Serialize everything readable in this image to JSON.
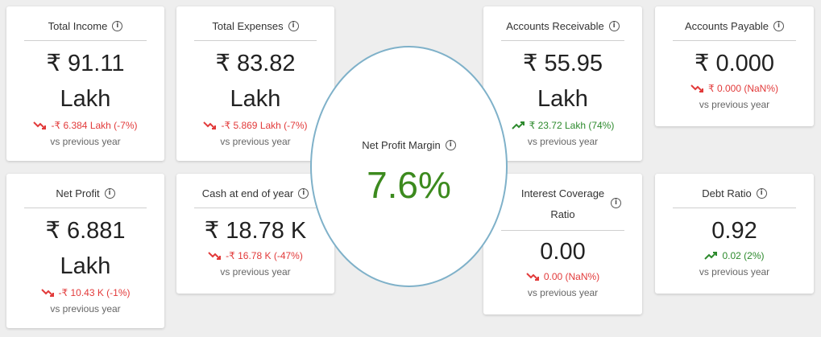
{
  "cards": {
    "total_income": {
      "title": "Total Income",
      "value_line1": "₹ 91.11",
      "value_line2": "Lakh",
      "change": "-₹ 6.384 Lakh (-7%)",
      "vs": "vs previous year"
    },
    "total_expenses": {
      "title": "Total Expenses",
      "value_line1": "₹ 83.82",
      "value_line2": "Lakh",
      "change": "-₹ 5.869 Lakh (-7%)",
      "vs": "vs previous year"
    },
    "accounts_receivable": {
      "title": "Accounts Receivable",
      "value_line1": "₹ 55.95",
      "value_line2": "Lakh",
      "change": "₹ 23.72 Lakh (74%)",
      "vs": "vs previous year"
    },
    "accounts_payable": {
      "title": "Accounts Payable",
      "value_line1": "₹ 0.000",
      "change": "₹ 0.000 (NaN%)",
      "vs": "vs previous year"
    },
    "net_profit": {
      "title": "Net Profit",
      "value_line1": "₹ 6.881",
      "value_line2": "Lakh",
      "change": "-₹ 10.43 K (-1%)",
      "vs": "vs previous year"
    },
    "cash_end_year": {
      "title": "Cash at end of year",
      "value_line1": "₹ 18.78 K",
      "change": "-₹ 16.78 K (-47%)",
      "vs": "vs previous year"
    },
    "interest_coverage": {
      "title_line1": "Interest Coverage",
      "title_line2": "Ratio",
      "value_line1": "0.00",
      "change": "0.00 (NaN%)",
      "vs": "vs previous year"
    },
    "debt_ratio": {
      "title": "Debt Ratio",
      "value_line1": "0.92",
      "change": "0.02 (2%)",
      "vs": "vs previous year"
    }
  },
  "net_profit_margin": {
    "title": "Net Profit Margin",
    "value": "7.6%"
  },
  "colors": {
    "down": "#e23a3a",
    "up": "#2d8a2d",
    "margin": "#3c8a1e",
    "circle_border": "#7fb1c9"
  },
  "icons": {
    "info": "info-icon",
    "trend_down": "trend-down-icon",
    "trend_up": "trend-up-icon"
  }
}
